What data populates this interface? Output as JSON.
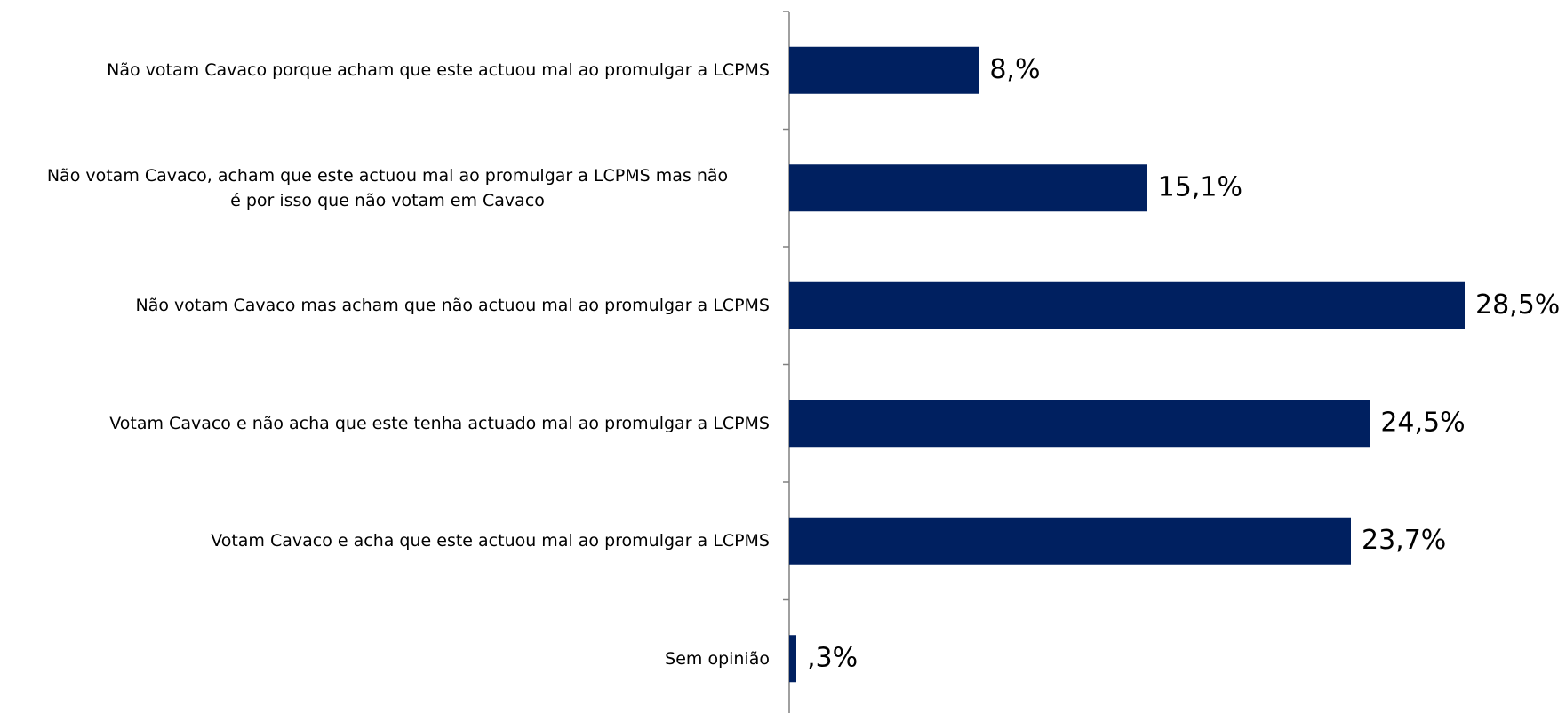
{
  "chart_data": {
    "type": "barh",
    "categories": [
      "Não votam Cavaco porque acham que este actuou mal ao promulgar a LCPMS",
      "Não votam Cavaco, acham que este actuou mal ao promulgar a LCPMS mas não\né por isso que não votam em Cavaco",
      "Não votam Cavaco mas acham que não actuou mal ao promulgar a LCPMS",
      "Votam Cavaco e não acha que este tenha actuado mal ao promulgar  a LCPMS",
      "Votam Cavaco e acha que este actuou mal ao promulgar a LCPMS",
      "Sem opinião"
    ],
    "values": [
      8.0,
      15.1,
      28.5,
      24.5,
      23.7,
      0.3
    ],
    "value_labels": [
      "8,%",
      "15,1%",
      "28,5%",
      "24,5%",
      "23,7%",
      ",3%"
    ],
    "color": "#002060"
  }
}
